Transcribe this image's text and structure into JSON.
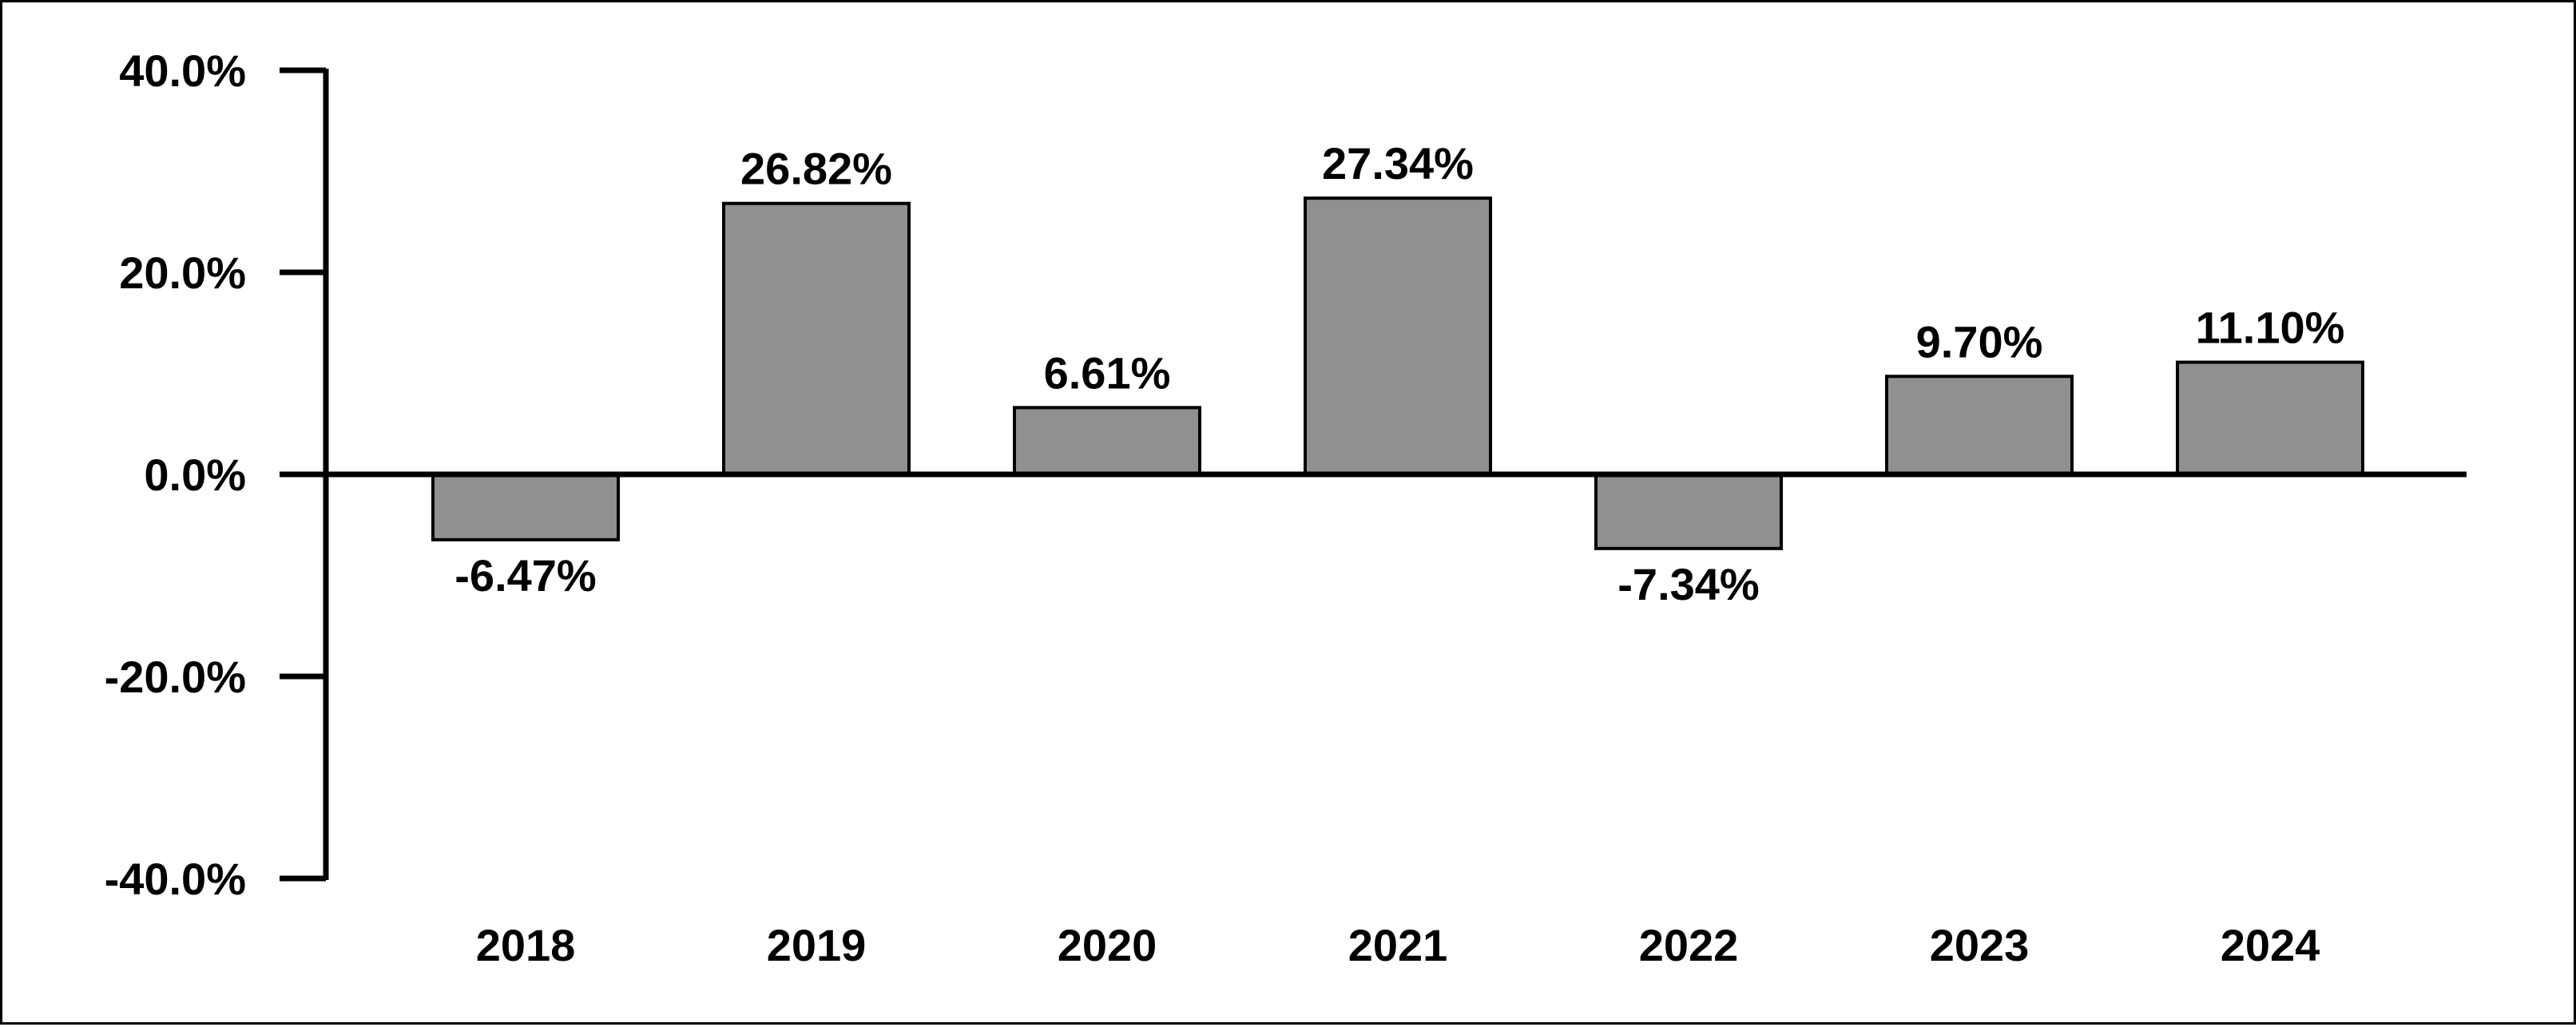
{
  "chart_data": {
    "type": "bar",
    "categories": [
      "2018",
      "2019",
      "2020",
      "2021",
      "2022",
      "2023",
      "2024"
    ],
    "values": [
      -6.47,
      26.82,
      6.61,
      27.34,
      -7.34,
      9.7,
      11.1
    ],
    "data_labels": [
      "-6.47%",
      "26.82%",
      "6.61%",
      "27.34%",
      "-7.34%",
      "9.70%",
      "11.10%"
    ],
    "ylim": [
      -40,
      40
    ],
    "yticks": [
      40,
      20,
      0,
      -20,
      -40
    ],
    "ytick_labels": [
      "40.0%",
      "20.0%",
      "0.0%",
      "-20.0%",
      "-40.0%"
    ],
    "title": "",
    "xlabel": "",
    "ylabel": "",
    "grid": false,
    "legend": "none",
    "bar_color": "#909090",
    "bar_edge_color": "#000000"
  }
}
